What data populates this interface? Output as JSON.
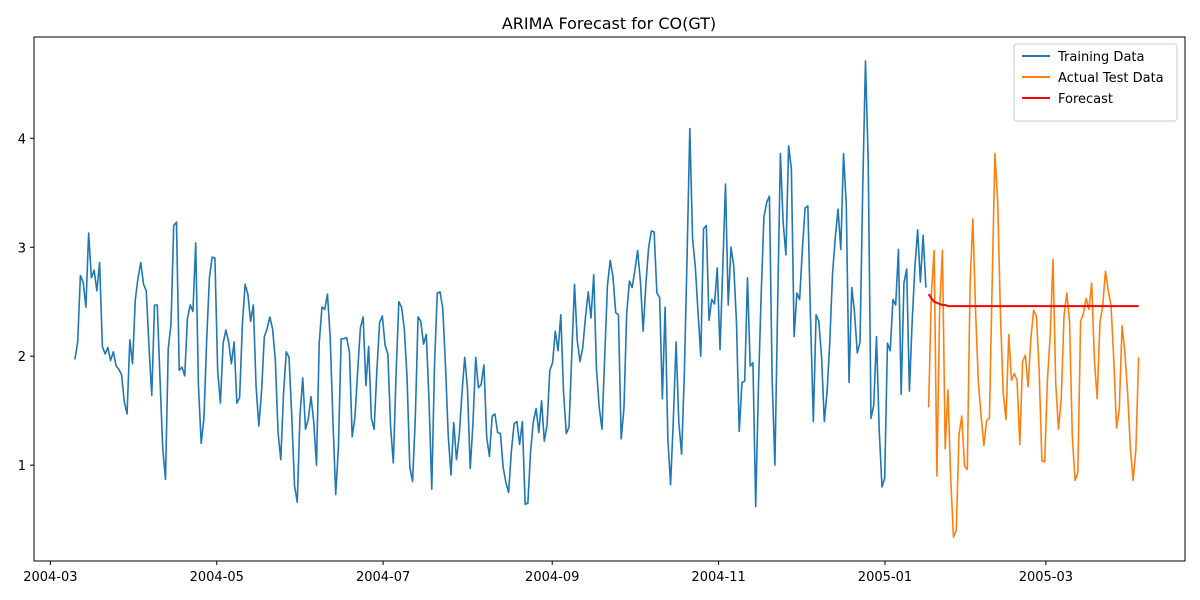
{
  "chart_data": {
    "type": "line",
    "title": "ARIMA Forecast for CO(GT)",
    "xlabel": "",
    "ylabel": "",
    "xlim": [
      "2004-02-24",
      "2005-04-21"
    ],
    "ylim": [
      0.12,
      4.93
    ],
    "x_ticks": [
      {
        "date": "2004-03-01",
        "label": "2004-03"
      },
      {
        "date": "2004-05-01",
        "label": "2004-05"
      },
      {
        "date": "2004-07-01",
        "label": "2004-07"
      },
      {
        "date": "2004-09-01",
        "label": "2004-09"
      },
      {
        "date": "2004-11-01",
        "label": "2004-11"
      },
      {
        "date": "2005-01-01",
        "label": "2005-01"
      },
      {
        "date": "2005-03-01",
        "label": "2005-03"
      }
    ],
    "y_ticks": [
      1,
      2,
      3,
      4
    ],
    "grid": false,
    "legend_position": "top-right",
    "series": [
      {
        "name": "Training Data",
        "color": "#1f77b4",
        "start_date": "2004-03-10",
        "end_date": "2005-01-16",
        "values": [
          1.97,
          2.13,
          2.74,
          2.68,
          2.45,
          3.13,
          2.72,
          2.79,
          2.6,
          2.86,
          2.09,
          2.02,
          2.08,
          1.96,
          2.04,
          1.91,
          1.88,
          1.83,
          1.58,
          1.47,
          2.15,
          1.93,
          2.52,
          2.72,
          2.86,
          2.66,
          2.6,
          2.08,
          1.64,
          2.47,
          2.47,
          1.79,
          1.15,
          0.87,
          2.07,
          2.29,
          3.2,
          3.23,
          1.87,
          1.9,
          1.82,
          2.35,
          2.47,
          2.41,
          3.04,
          1.73,
          1.2,
          1.43,
          2.15,
          2.72,
          2.91,
          2.9,
          1.87,
          1.57,
          2.12,
          2.24,
          2.13,
          1.93,
          2.13,
          1.57,
          1.62,
          2.29,
          2.66,
          2.57,
          2.32,
          2.47,
          1.72,
          1.36,
          1.68,
          2.18,
          2.25,
          2.36,
          2.25,
          1.97,
          1.3,
          1.05,
          1.66,
          2.04,
          1.99,
          1.45,
          0.81,
          0.66,
          1.46,
          1.8,
          1.33,
          1.42,
          1.63,
          1.4,
          1.0,
          2.12,
          2.45,
          2.43,
          2.57,
          2.17,
          1.4,
          0.73,
          1.17,
          2.16,
          2.16,
          2.17,
          2.04,
          1.26,
          1.44,
          1.86,
          2.26,
          2.36,
          1.73,
          2.09,
          1.43,
          1.33,
          1.87,
          2.31,
          2.37,
          2.1,
          2.02,
          1.35,
          1.02,
          1.84,
          2.5,
          2.45,
          2.25,
          1.8,
          0.98,
          0.85,
          1.43,
          2.36,
          2.32,
          2.11,
          2.2,
          1.59,
          0.78,
          1.92,
          2.58,
          2.59,
          2.44,
          1.91,
          1.27,
          0.91,
          1.39,
          1.05,
          1.27,
          1.66,
          1.99,
          1.71,
          0.97,
          1.38,
          1.99,
          1.71,
          1.74,
          1.92,
          1.26,
          1.08,
          1.45,
          1.47,
          1.3,
          1.29,
          0.98,
          0.84,
          0.75,
          1.13,
          1.38,
          1.4,
          1.19,
          1.4,
          0.64,
          0.65,
          1.13,
          1.4,
          1.52,
          1.3,
          1.59,
          1.22,
          1.37,
          1.87,
          1.94,
          2.23,
          2.05,
          2.38,
          1.67,
          1.29,
          1.35,
          2.01,
          2.66,
          2.14,
          1.95,
          2.08,
          2.36,
          2.59,
          2.35,
          2.75,
          1.88,
          1.53,
          1.33,
          2.0,
          2.65,
          2.88,
          2.73,
          2.4,
          2.38,
          1.24,
          1.52,
          2.39,
          2.69,
          2.63,
          2.79,
          2.97,
          2.69,
          2.23,
          2.66,
          3.0,
          3.15,
          3.14,
          2.58,
          2.54,
          1.61,
          2.45,
          1.24,
          0.82,
          1.42,
          2.13,
          1.39,
          1.1,
          1.83,
          2.91,
          4.09,
          3.08,
          2.82,
          2.4,
          2.0,
          3.17,
          3.2,
          2.33,
          2.52,
          2.48,
          2.81,
          2.06,
          2.81,
          3.58,
          2.47,
          3.0,
          2.83,
          2.31,
          1.31,
          1.76,
          1.77,
          2.72,
          1.91,
          1.94,
          0.62,
          1.72,
          2.57,
          3.28,
          3.41,
          3.47,
          1.78,
          1.0,
          2.47,
          3.86,
          3.23,
          2.93,
          3.93,
          3.72,
          2.18,
          2.58,
          2.52,
          2.98,
          3.36,
          3.38,
          2.32,
          1.4,
          2.38,
          2.32,
          1.99,
          1.4,
          1.67,
          2.14,
          2.76,
          3.09,
          3.35,
          2.98,
          3.86,
          3.39,
          1.76,
          2.63,
          2.4,
          2.03,
          2.13,
          3.55,
          4.71,
          3.78,
          1.43,
          1.55,
          2.18,
          1.32,
          0.8,
          0.88,
          2.12,
          2.05,
          2.52,
          2.47,
          2.98,
          1.65,
          2.67,
          2.8,
          1.68,
          2.32,
          2.82,
          3.16,
          2.68,
          3.11,
          2.63
        ]
      },
      {
        "name": "Actual Test Data",
        "color": "#ff7f0e",
        "start_date": "2005-01-17",
        "end_date": "2005-04-04",
        "values": [
          1.53,
          2.57,
          2.97,
          0.9,
          2.44,
          2.97,
          1.15,
          1.69,
          0.87,
          0.34,
          0.4,
          1.28,
          1.45,
          0.99,
          0.96,
          2.66,
          3.26,
          2.41,
          1.76,
          1.45,
          1.18,
          1.41,
          1.43,
          2.67,
          3.86,
          3.42,
          2.38,
          1.66,
          1.42,
          2.2,
          1.78,
          1.84,
          1.78,
          1.19,
          1.95,
          2.01,
          1.72,
          2.16,
          2.42,
          2.37,
          1.87,
          1.04,
          1.03,
          1.78,
          2.19,
          2.89,
          1.75,
          1.33,
          1.61,
          2.37,
          2.58,
          2.32,
          1.26,
          0.86,
          0.93,
          2.32,
          2.39,
          2.53,
          2.43,
          2.67,
          1.96,
          1.61,
          2.31,
          2.46,
          2.78,
          2.6,
          2.47,
          1.97,
          1.34,
          1.51,
          2.28,
          2.04,
          1.67,
          1.16,
          0.86,
          1.14,
          1.99
        ]
      },
      {
        "name": "Forecast",
        "color": "#ff0000",
        "start_date": "2005-01-17",
        "end_date": "2005-04-04",
        "values": [
          2.57,
          2.53,
          2.5,
          2.49,
          2.48,
          2.47,
          2.47,
          2.46,
          2.46,
          2.46,
          2.46,
          2.46,
          2.46,
          2.46,
          2.46,
          2.46,
          2.46,
          2.46,
          2.46,
          2.46,
          2.46,
          2.46,
          2.46,
          2.46,
          2.46,
          2.46,
          2.46,
          2.46,
          2.46,
          2.46,
          2.46,
          2.46,
          2.46,
          2.46,
          2.46,
          2.46,
          2.46,
          2.46,
          2.46,
          2.46,
          2.46,
          2.46,
          2.46,
          2.46,
          2.46,
          2.46,
          2.46,
          2.46,
          2.46,
          2.46,
          2.46,
          2.46,
          2.46,
          2.46,
          2.46,
          2.46,
          2.46,
          2.46,
          2.46,
          2.46,
          2.46,
          2.46,
          2.46,
          2.46,
          2.46,
          2.46,
          2.46,
          2.46,
          2.46,
          2.46,
          2.46,
          2.46,
          2.46,
          2.46,
          2.46,
          2.46,
          2.46
        ]
      }
    ]
  }
}
